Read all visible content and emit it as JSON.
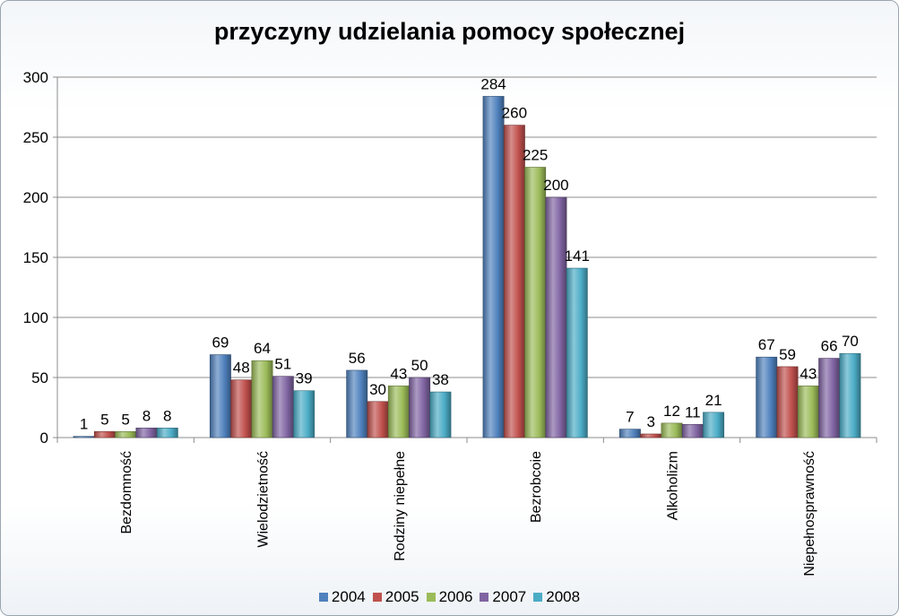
{
  "chart_data": {
    "type": "bar",
    "title": "przyczyny udzielania pomocy społecznej",
    "xlabel": "",
    "ylabel": "",
    "ylim": [
      0,
      300
    ],
    "yticks": [
      0,
      50,
      100,
      150,
      200,
      250,
      300
    ],
    "grid": true,
    "legend": "bottom",
    "categories": [
      "Bezdomność",
      "Wielodzietność",
      "Rodziny niepełne",
      "Bezrobcoie",
      "Alkoholizm",
      "Niepełnosprawność"
    ],
    "series": [
      {
        "name": "2004",
        "color": "#4f81bd",
        "values": [
          1,
          69,
          56,
          284,
          7,
          67
        ]
      },
      {
        "name": "2005",
        "color": "#c0504d",
        "values": [
          5,
          48,
          30,
          260,
          3,
          59
        ]
      },
      {
        "name": "2006",
        "color": "#9bbb59",
        "values": [
          5,
          64,
          43,
          225,
          12,
          43
        ]
      },
      {
        "name": "2007",
        "color": "#8064a2",
        "values": [
          8,
          51,
          50,
          200,
          11,
          66
        ]
      },
      {
        "name": "2008",
        "color": "#4bacc6",
        "values": [
          8,
          39,
          38,
          141,
          21,
          70
        ]
      }
    ]
  }
}
